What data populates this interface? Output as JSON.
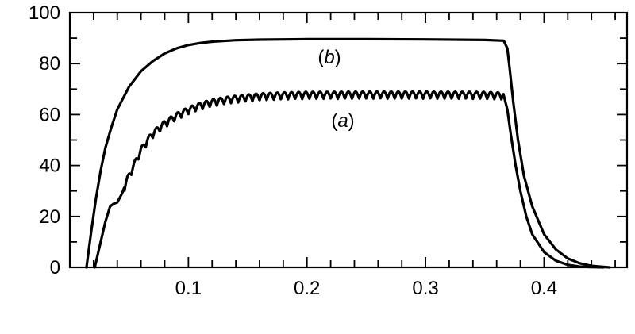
{
  "chart_data": {
    "type": "line",
    "title": "",
    "xlabel": "",
    "ylabel": "",
    "xlim": [
      0.0,
      0.47
    ],
    "ylim": [
      0,
      100
    ],
    "x_ticks": [
      0.1,
      0.2,
      0.3,
      0.4
    ],
    "x_tick_labels": [
      "0.1",
      "0.2",
      "0.3",
      "0.4"
    ],
    "x_minor_step": 0.02,
    "y_ticks": [
      0,
      20,
      40,
      60,
      80,
      100
    ],
    "y_tick_labels": [
      "0",
      "20",
      "40",
      "60",
      "80",
      "100"
    ],
    "y_minor_step": 10,
    "grid": false,
    "colors": {
      "line": "#000000",
      "axes": "#000000"
    },
    "series": [
      {
        "label": "(b)",
        "ripple": false,
        "x": [
          0.014,
          0.018,
          0.022,
          0.026,
          0.03,
          0.035,
          0.04,
          0.05,
          0.06,
          0.07,
          0.08,
          0.09,
          0.1,
          0.11,
          0.12,
          0.14,
          0.16,
          0.2,
          0.25,
          0.3,
          0.35,
          0.366,
          0.369,
          0.371,
          0.374,
          0.378,
          0.383,
          0.39,
          0.4,
          0.41,
          0.42,
          0.43,
          0.44,
          0.45,
          0.455
        ],
        "y": [
          0,
          14,
          27,
          38,
          47,
          55,
          62,
          71,
          77,
          81,
          84,
          86,
          87.3,
          88.1,
          88.6,
          89.2,
          89.4,
          89.6,
          89.6,
          89.5,
          89.3,
          89.0,
          86,
          78,
          65,
          50,
          36,
          24,
          13,
          7,
          3.5,
          1.6,
          0.6,
          0.2,
          0
        ]
      },
      {
        "label": "(a)",
        "ripple": true,
        "ripple_period": 0.006,
        "ripple_amp": 1.4,
        "x": [
          0.021,
          0.026,
          0.03,
          0.034,
          0.037,
          0.04,
          0.044,
          0.048,
          0.052,
          0.056,
          0.06,
          0.065,
          0.07,
          0.08,
          0.09,
          0.1,
          0.11,
          0.12,
          0.13,
          0.14,
          0.16,
          0.18,
          0.2,
          0.25,
          0.3,
          0.35,
          0.366,
          0.369,
          0.372,
          0.376,
          0.38,
          0.385,
          0.39,
          0.4,
          0.41,
          0.42,
          0.43,
          0.44,
          0.45
        ],
        "y": [
          0,
          10,
          18,
          24,
          25,
          25.5,
          29,
          34,
          38,
          42,
          46,
          49.5,
          52.5,
          56.5,
          59.5,
          61.8,
          63.6,
          64.8,
          65.7,
          66.3,
          67.2,
          67.6,
          67.8,
          67.9,
          67.9,
          67.8,
          67.5,
          62,
          52,
          40,
          30,
          20,
          13,
          6,
          2.6,
          1,
          0.3,
          0.1,
          0
        ]
      }
    ]
  }
}
